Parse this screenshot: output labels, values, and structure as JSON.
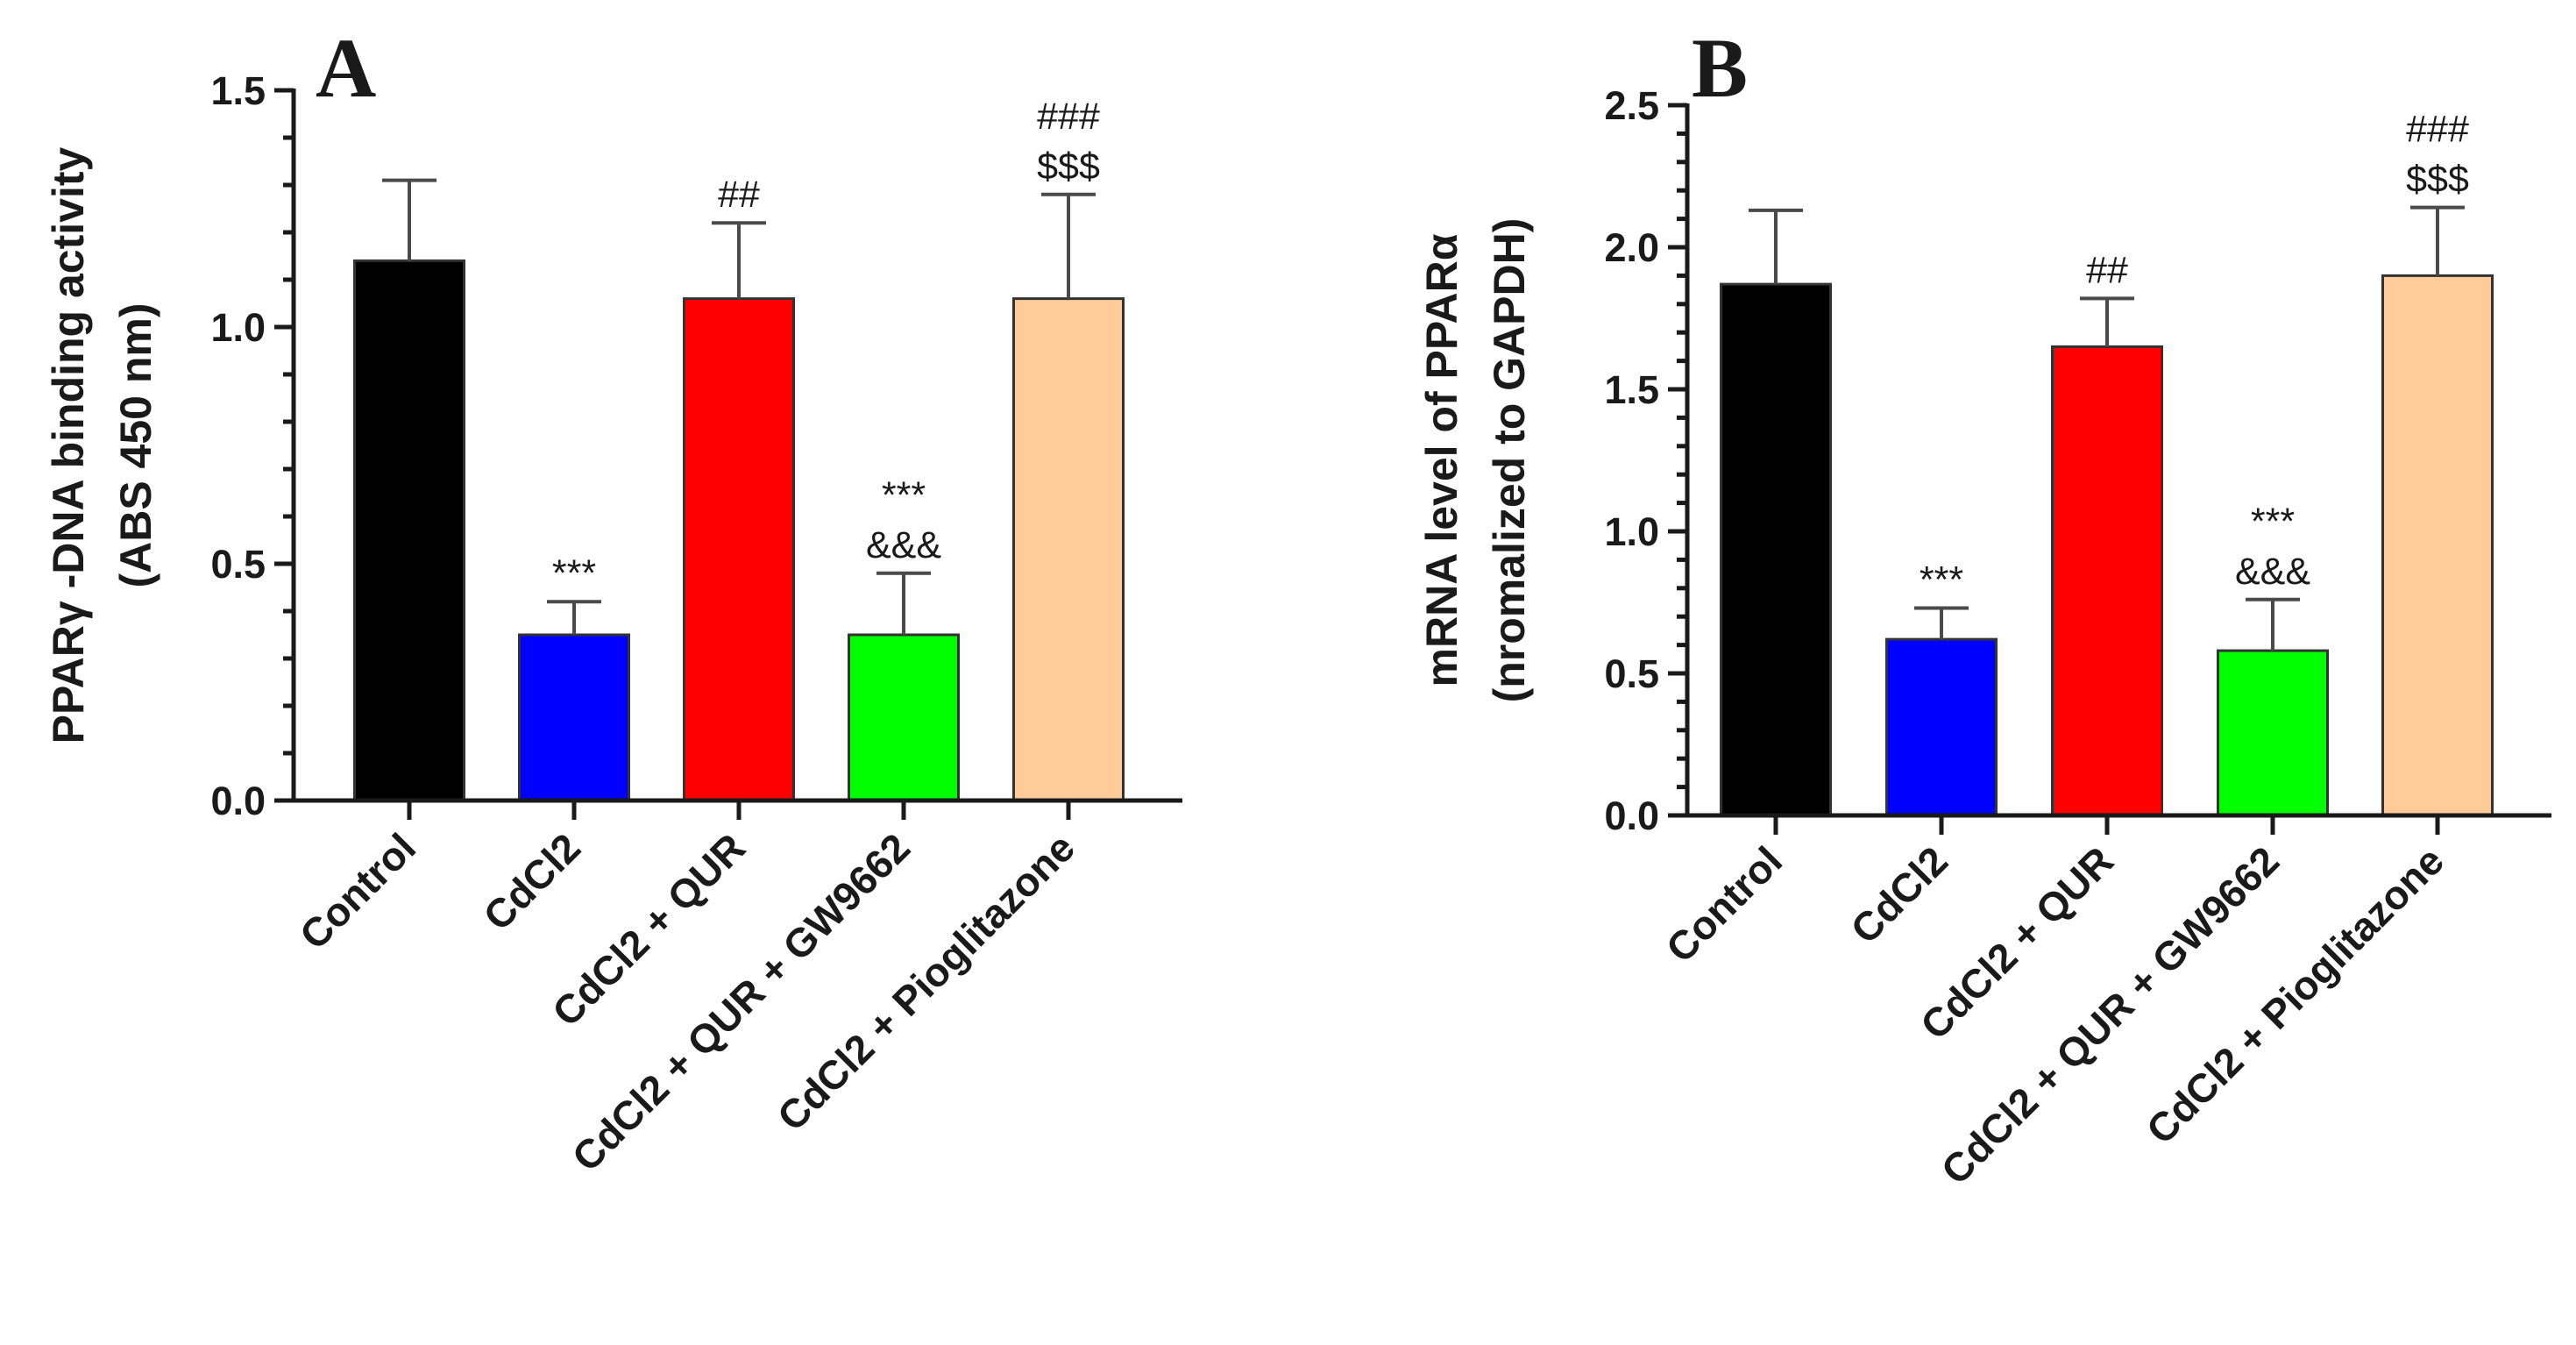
{
  "chart_data": [
    {
      "type": "bar",
      "panel_label": "A",
      "ylabel_lines": [
        "PPARγ -DNA binding activity",
        "(ABS 450 nm)"
      ],
      "xlabel": "",
      "categories": [
        "Control",
        "CdCl2",
        "CdCl2 + QUR",
        "CdCl2 + QUR + GW9662",
        "CdCl2 +  Pioglitazone"
      ],
      "values": [
        1.14,
        0.35,
        1.06,
        0.35,
        1.06
      ],
      "errors": [
        0.17,
        0.07,
        0.16,
        0.13,
        0.22
      ],
      "colors": [
        "#000000",
        "#0000ff",
        "#ff0000",
        "#00ff00",
        "#ffcc99"
      ],
      "annotations": [
        [],
        [
          "***"
        ],
        [
          "##"
        ],
        [
          "***",
          "&&&"
        ],
        [
          "###",
          "$$$"
        ]
      ],
      "ylim": [
        0,
        1.5
      ],
      "yticks": [
        0.0,
        0.5,
        1.0,
        1.5
      ],
      "ytick_labels": [
        "0.0",
        "0.5",
        "1.0",
        "1.5"
      ]
    },
    {
      "type": "bar",
      "panel_label": "B",
      "ylabel_lines": [
        "mRNA level of PPARα",
        "(nromalized to GAPDH)"
      ],
      "xlabel": "",
      "categories": [
        "Control",
        "CdCl2",
        "CdCl2 + QUR",
        "CdCl2 + QUR + GW9662",
        "CdCl2 +  Pioglitazone"
      ],
      "values": [
        1.87,
        0.62,
        1.65,
        0.58,
        1.9
      ],
      "errors": [
        0.26,
        0.11,
        0.17,
        0.18,
        0.24
      ],
      "colors": [
        "#000000",
        "#0000ff",
        "#ff0000",
        "#00ff00",
        "#ffcc99"
      ],
      "annotations": [
        [],
        [
          "***"
        ],
        [
          "##"
        ],
        [
          "***",
          "&&&"
        ],
        [
          "###",
          "$$$"
        ]
      ],
      "ylim": [
        0,
        2.5
      ],
      "yticks": [
        0.0,
        0.5,
        1.0,
        1.5,
        2.0,
        2.5
      ],
      "ytick_labels": [
        "0.0",
        "0.5",
        "1.0",
        "1.5",
        "2.0",
        "2.5"
      ]
    }
  ]
}
